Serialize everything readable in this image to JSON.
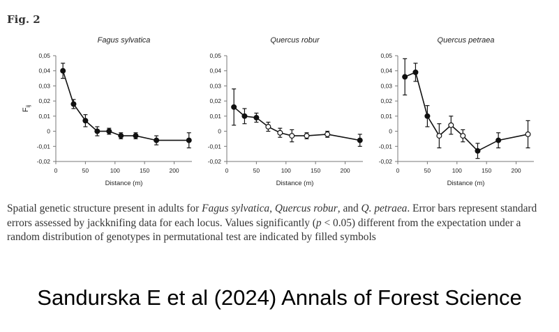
{
  "figure": {
    "label": "Fig. 2"
  },
  "chart_data": [
    {
      "type": "line",
      "title": "Fagus sylvatica",
      "xlabel": "Distance (m)",
      "ylabel": "Fij",
      "xlim": [
        0,
        230
      ],
      "ylim": [
        -0.02,
        0.05
      ],
      "xticks": [
        "0",
        "50",
        "100",
        "150",
        "200"
      ],
      "yticks": [
        "-0,02",
        "-0,01",
        "0",
        "0,01",
        "0,02",
        "0,03",
        "0,04",
        "0,05"
      ],
      "grid": false,
      "series": [
        {
          "x": [
            12,
            30,
            50,
            70,
            90,
            110,
            135,
            170,
            225
          ],
          "y": [
            0.04,
            0.018,
            0.007,
            0.0,
            0.0,
            -0.003,
            -0.003,
            -0.006,
            -0.006
          ],
          "err": [
            0.005,
            0.003,
            0.004,
            0.003,
            0.002,
            0.002,
            0.002,
            0.003,
            0.005
          ],
          "filled": [
            true,
            true,
            true,
            true,
            true,
            true,
            true,
            true,
            true
          ]
        }
      ]
    },
    {
      "type": "line",
      "title": "Quercus robur",
      "xlabel": "Distance (m)",
      "ylabel": "",
      "xlim": [
        0,
        230
      ],
      "ylim": [
        -0.02,
        0.05
      ],
      "xticks": [
        "0",
        "50",
        "100",
        "150",
        "200"
      ],
      "yticks": [
        "-0,02",
        "-0,01",
        "0",
        "0,01",
        "0,02",
        "0,03",
        "0,04",
        "0,05"
      ],
      "grid": false,
      "series": [
        {
          "x": [
            12,
            30,
            50,
            70,
            90,
            110,
            135,
            170,
            225
          ],
          "y": [
            0.016,
            0.01,
            0.009,
            0.003,
            -0.001,
            -0.003,
            -0.003,
            -0.002,
            -0.006
          ],
          "err": [
            0.012,
            0.005,
            0.003,
            0.003,
            0.003,
            0.004,
            0.002,
            0.002,
            0.004
          ],
          "filled": [
            true,
            true,
            true,
            false,
            false,
            false,
            false,
            false,
            true
          ]
        }
      ]
    },
    {
      "type": "line",
      "title": "Quercus petraea",
      "xlabel": "Distance (m)",
      "ylabel": "",
      "xlim": [
        0,
        230
      ],
      "ylim": [
        -0.02,
        0.05
      ],
      "xticks": [
        "0",
        "50",
        "100",
        "150",
        "200"
      ],
      "yticks": [
        "-0,02",
        "-0,01",
        "0",
        "0,01",
        "0,02",
        "0,03",
        "0,04",
        "0,05"
      ],
      "grid": false,
      "series": [
        {
          "x": [
            12,
            30,
            50,
            70,
            90,
            110,
            135,
            170,
            220
          ],
          "y": [
            0.036,
            0.039,
            0.01,
            -0.003,
            0.004,
            -0.003,
            -0.013,
            -0.006,
            -0.002
          ],
          "err": [
            0.012,
            0.006,
            0.007,
            0.008,
            0.006,
            0.004,
            0.005,
            0.005,
            0.009
          ],
          "filled": [
            true,
            true,
            true,
            false,
            false,
            false,
            true,
            true,
            false
          ]
        }
      ]
    }
  ],
  "caption": {
    "t1": "Spatial genetic structure present in adults for ",
    "t2": "Fagus sylvatica",
    "t3": ", ",
    "t4": "Quercus robur",
    "t5": ", and ",
    "t6": "Q. petraea",
    "t7": ". Error bars represent standard errors assessed by jackknifing data for each locus. Values significantly (",
    "t8": "p",
    "t9": " < 0.05) different from the expectation under a random distribution of genotypes in permutational test are indicated by filled symbols"
  },
  "citation": "Sandurska E et al (2024) Annals of Forest Science"
}
